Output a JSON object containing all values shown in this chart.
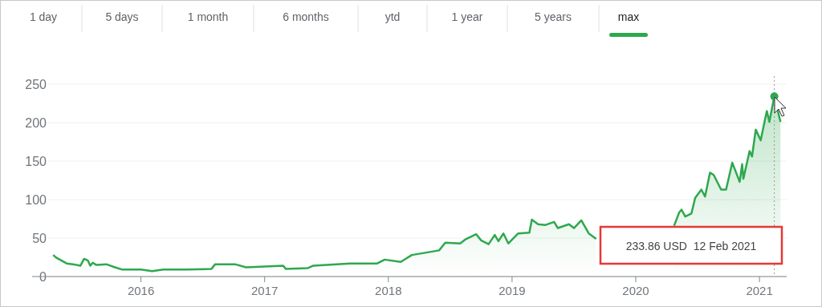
{
  "chart_data": {
    "type": "area",
    "color": "#2ea84f",
    "x": [
      2015.29,
      2015.32,
      2015.4,
      2015.45,
      2015.51,
      2015.54,
      2015.57,
      2015.59,
      2015.61,
      2015.64,
      2015.72,
      2015.79,
      2015.85,
      2016.0,
      2016.09,
      2016.18,
      2016.37,
      2016.57,
      2016.6,
      2016.76,
      2016.85,
      2017.0,
      2017.15,
      2017.17,
      2017.35,
      2017.39,
      2017.69,
      2017.91,
      2017.97,
      2018.1,
      2018.19,
      2018.41,
      2018.46,
      2018.58,
      2018.62,
      2018.71,
      2018.75,
      2018.81,
      2018.86,
      2018.89,
      2018.93,
      2018.97,
      2019.05,
      2019.14,
      2019.16,
      2019.21,
      2019.27,
      2019.34,
      2019.37,
      2019.46,
      2019.5,
      2019.56,
      2019.62,
      2019.68,
      2020.0,
      2020.31,
      2020.35,
      2020.37,
      2020.4,
      2020.45,
      2020.48,
      2020.53,
      2020.56,
      2020.6,
      2020.63,
      2020.69,
      2020.73,
      2020.78,
      2020.84,
      2020.86,
      2020.87,
      2020.92,
      2020.94,
      2020.97,
      2021.01,
      2021.05,
      2021.06,
      2021.08,
      2021.12,
      2021.17
    ],
    "values": [
      28,
      24,
      17,
      16,
      14,
      23,
      21,
      14,
      18,
      15,
      16,
      12,
      9,
      9,
      7,
      9,
      9,
      10,
      16,
      16,
      12,
      13,
      14,
      10,
      11,
      14,
      17,
      17,
      22,
      19,
      28,
      34,
      44,
      43,
      48,
      55,
      47,
      42,
      54,
      46,
      56,
      43,
      56,
      57,
      74,
      68,
      67,
      71,
      63,
      68,
      63,
      73,
      56,
      49,
      null,
      66,
      83,
      87,
      78,
      82,
      102,
      113,
      104,
      135,
      132,
      113,
      113,
      148,
      123,
      146,
      127,
      163,
      156,
      191,
      177,
      208,
      215,
      201,
      234,
      201
    ],
    "xlim": [
      2015.12,
      2021.22
    ],
    "xticks": [
      2016,
      2017,
      2018,
      2019,
      2020,
      2021
    ],
    "ylim": [
      0,
      250
    ],
    "yticks": [
      0,
      50,
      100,
      150,
      200,
      250
    ],
    "grid": "y",
    "ref_lines": [
      {
        "axis": "x",
        "value": 2021.12,
        "line_style": "dotted",
        "color": "#999999"
      }
    ],
    "annotations": [
      "233.86 USD  12 Feb 2021",
      "1 day",
      "5 days",
      "1 month",
      "6 months",
      "ytd",
      "1 year",
      "5 years",
      "max"
    ]
  }
}
